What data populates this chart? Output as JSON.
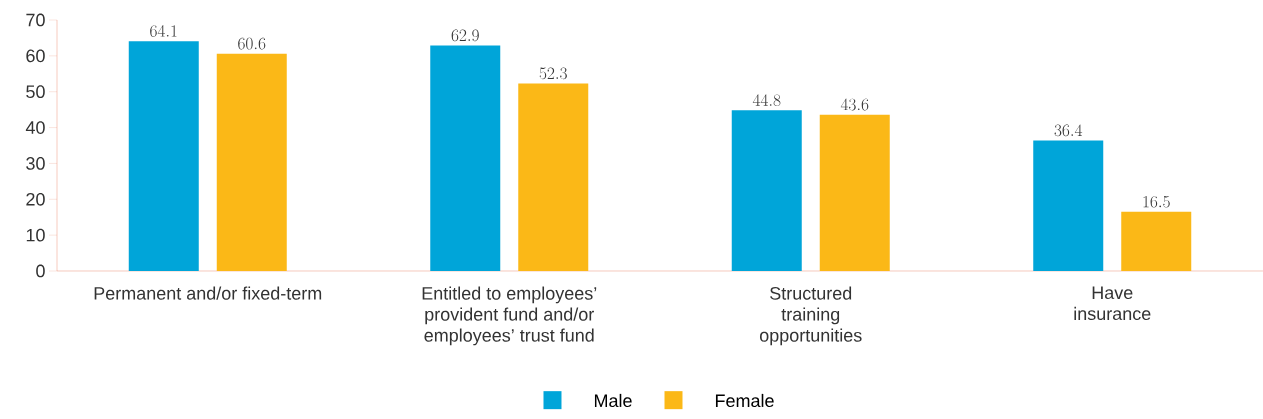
{
  "chart_data": {
    "type": "bar",
    "categories": [
      "Permanent and/or fixed-term",
      "Entitled to employees’ provident fund and/or employees’ trust fund",
      "Structured training opportunities",
      "Have insurance"
    ],
    "series": [
      {
        "name": "Male",
        "color": "#00a5d9",
        "values": [
          64.1,
          62.9,
          44.8,
          36.4
        ]
      },
      {
        "name": "Female",
        "color": "#fbb817",
        "values": [
          60.6,
          52.3,
          43.6,
          16.5
        ]
      }
    ],
    "ylim": [
      0,
      70
    ],
    "yticks": [
      0,
      10,
      20,
      30,
      40,
      50,
      60,
      70
    ],
    "data_labels": true,
    "legend": "bottom",
    "grid": false
  }
}
